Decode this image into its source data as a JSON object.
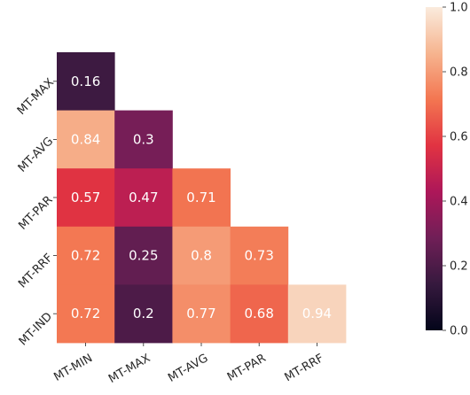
{
  "chart_data": {
    "type": "heatmap",
    "title": "",
    "xlabel": "",
    "ylabel": "",
    "x_categories": [
      "MT-MIN",
      "MT-MAX",
      "MT-AVG",
      "MT-PAR",
      "MT-RRF"
    ],
    "y_categories": [
      "MT-MAX",
      "MT-AVG",
      "MT-PAR",
      "MT-RRF",
      "MT-IND"
    ],
    "cells": [
      {
        "row": 0,
        "col": 0,
        "value": 0.16,
        "label": "0.16"
      },
      {
        "row": 1,
        "col": 0,
        "value": 0.84,
        "label": "0.84"
      },
      {
        "row": 1,
        "col": 1,
        "value": 0.3,
        "label": "0.3"
      },
      {
        "row": 2,
        "col": 0,
        "value": 0.57,
        "label": "0.57"
      },
      {
        "row": 2,
        "col": 1,
        "value": 0.47,
        "label": "0.47"
      },
      {
        "row": 2,
        "col": 2,
        "value": 0.71,
        "label": "0.71"
      },
      {
        "row": 3,
        "col": 0,
        "value": 0.72,
        "label": "0.72"
      },
      {
        "row": 3,
        "col": 1,
        "value": 0.25,
        "label": "0.25"
      },
      {
        "row": 3,
        "col": 2,
        "value": 0.8,
        "label": "0.8"
      },
      {
        "row": 3,
        "col": 3,
        "value": 0.73,
        "label": "0.73"
      },
      {
        "row": 4,
        "col": 0,
        "value": 0.72,
        "label": "0.72"
      },
      {
        "row": 4,
        "col": 1,
        "value": 0.2,
        "label": "0.2"
      },
      {
        "row": 4,
        "col": 2,
        "value": 0.77,
        "label": "0.77"
      },
      {
        "row": 4,
        "col": 3,
        "value": 0.68,
        "label": "0.68"
      },
      {
        "row": 4,
        "col": 4,
        "value": 0.94,
        "label": "0.94"
      }
    ],
    "colorbar": {
      "range": [
        0.0,
        1.0
      ],
      "ticks": [
        "0.0",
        "0.2",
        "0.4",
        "0.6",
        "0.8",
        "1.0"
      ],
      "colormap": "rocket",
      "stops": [
        "#03051a",
        "#36193e",
        "#701f57",
        "#ad1759",
        "#e13342",
        "#f37651",
        "#f6b48f",
        "#faebdd"
      ]
    },
    "grid": false,
    "legend": "colorbar-right"
  }
}
